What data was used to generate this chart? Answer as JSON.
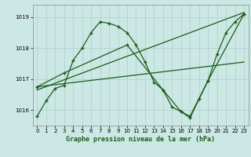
{
  "title": "Graphe pression niveau de la mer (hPa)",
  "bg_color": "#cce8e4",
  "grid_color": "#b0cccc",
  "line_color": "#1a5c1a",
  "xlim": [
    -0.5,
    23.5
  ],
  "ylim": [
    1015.5,
    1019.4
  ],
  "yticks": [
    1016,
    1017,
    1018,
    1019
  ],
  "xticks": [
    0,
    1,
    2,
    3,
    4,
    5,
    6,
    7,
    8,
    9,
    10,
    11,
    12,
    13,
    14,
    15,
    16,
    17,
    18,
    19,
    20,
    21,
    22,
    23
  ],
  "series1_x": [
    0,
    1,
    2,
    3,
    4,
    5,
    6,
    7,
    8,
    9,
    10,
    11,
    12,
    13,
    14,
    15,
    16,
    17,
    18,
    19,
    20,
    21,
    22,
    23
  ],
  "series1_y": [
    1015.8,
    1016.3,
    1016.7,
    1016.8,
    1017.6,
    1018.0,
    1018.5,
    1018.85,
    1018.8,
    1018.7,
    1018.5,
    1018.1,
    1017.55,
    1016.9,
    1016.65,
    1016.1,
    1015.95,
    1015.75,
    1016.35,
    1016.95,
    1017.8,
    1018.5,
    1018.85,
    1019.1
  ],
  "series2_x": [
    0,
    23
  ],
  "series2_y": [
    1016.65,
    1019.15
  ],
  "series3_x": [
    0,
    23
  ],
  "series3_y": [
    1016.75,
    1017.55
  ],
  "series4_x": [
    0,
    3,
    10,
    14,
    16,
    17,
    19,
    23
  ],
  "series4_y": [
    1016.75,
    1017.2,
    1018.1,
    1016.65,
    1015.95,
    1015.8,
    1016.95,
    1019.1
  ]
}
